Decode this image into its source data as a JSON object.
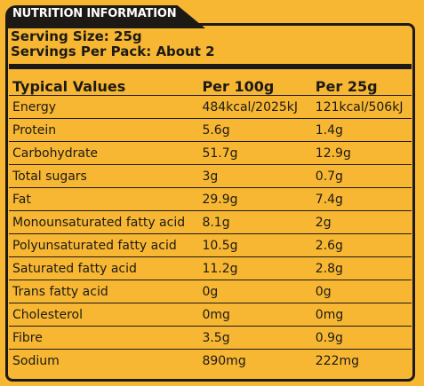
{
  "header": {
    "tab_title": "NUTRITION INFORMATION"
  },
  "serving": {
    "size": "Serving Size: 25g",
    "per_pack": "Servings Per Pack: About 2"
  },
  "table": {
    "columns": [
      "Typical Values",
      "Per 100g",
      "Per 25g"
    ],
    "rows": [
      [
        "Energy",
        "484kcal/2025kJ",
        "121kcal/506kJ"
      ],
      [
        "Protein",
        "5.6g",
        "1.4g"
      ],
      [
        "Carbohydrate",
        "51.7g",
        "12.9g"
      ],
      [
        "Total sugars",
        "3g",
        "0.7g"
      ],
      [
        "Fat",
        "29.9g",
        "7.4g"
      ],
      [
        "Monounsaturated fatty acid",
        "8.1g",
        "2g"
      ],
      [
        "Polyunsaturated fatty acid",
        "10.5g",
        "2.6g"
      ],
      [
        "Saturated fatty acid",
        "11.2g",
        "2.8g"
      ],
      [
        "Trans fatty acid",
        "0g",
        "0g"
      ],
      [
        "Cholesterol",
        "0mg",
        "0mg"
      ],
      [
        "Fibre",
        "3.5g",
        "0.9g"
      ],
      [
        "Sodium",
        "890mg",
        "222mg"
      ]
    ]
  },
  "colors": {
    "background": "#f7b733",
    "ink": "#1d1a16"
  }
}
